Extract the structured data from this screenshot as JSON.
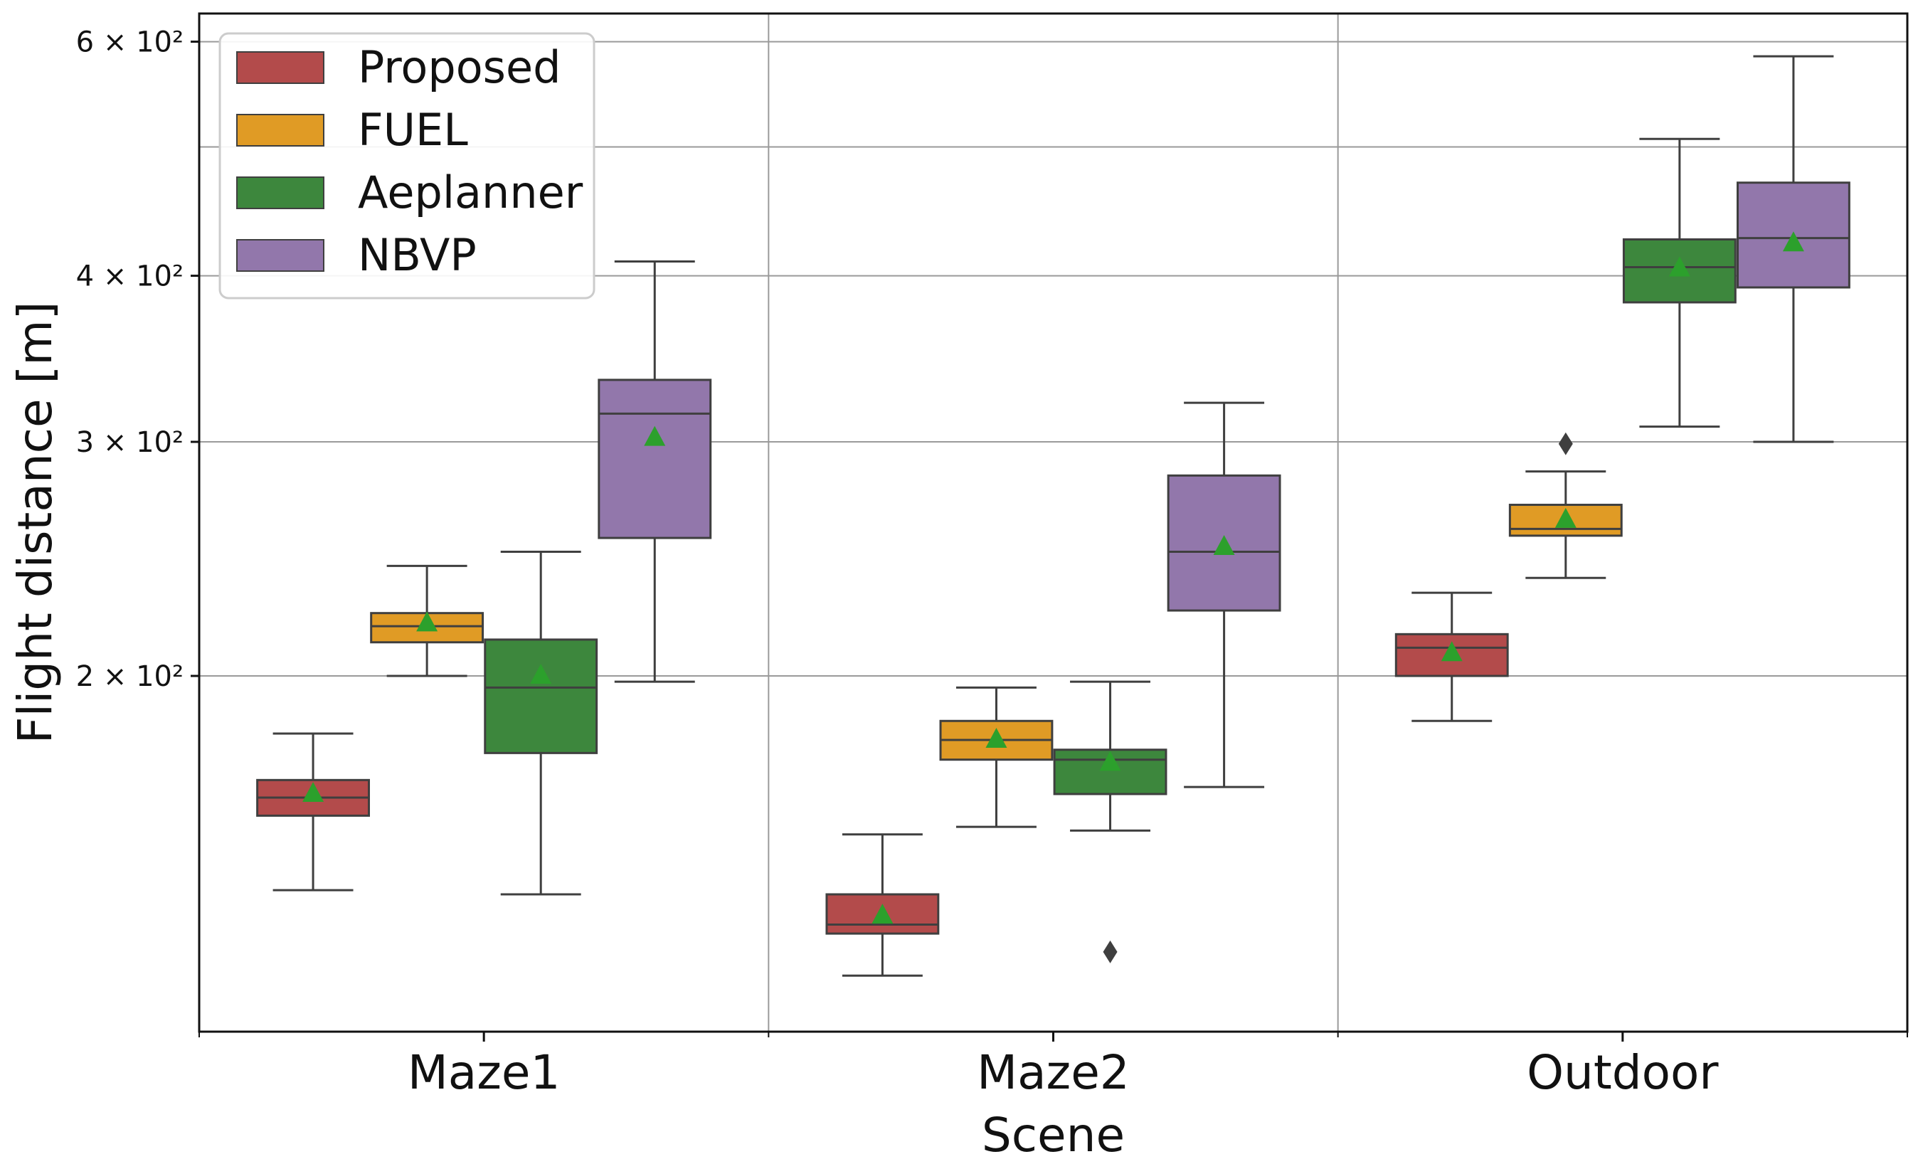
{
  "chart_data": {
    "type": "boxplot",
    "title": "",
    "xlabel": "Scene",
    "ylabel": "Flight distance [m]",
    "yscale": "log",
    "ylim": [
      108,
      630
    ],
    "y_major_ticks": [
      {
        "value": 200,
        "label": "2 × 10²"
      },
      {
        "value": 300,
        "label": "3 × 10²"
      },
      {
        "value": 400,
        "label": "4 × 10²"
      },
      {
        "value": 600,
        "label": "6 × 10²"
      }
    ],
    "y_minor_gridlines": [
      500
    ],
    "categories": [
      "Maze1",
      "Maze2",
      "Outdoor"
    ],
    "grid": true,
    "legend_position": "top-left",
    "series": [
      {
        "name": "Proposed",
        "color": "#b34b4b",
        "boxes": [
          {
            "whisker_low": 138,
            "q1": 157,
            "median": 162,
            "q3": 167,
            "whisker_high": 181,
            "mean": 163,
            "outliers": []
          },
          {
            "whisker_low": 119,
            "q1": 128,
            "median": 130,
            "q3": 137,
            "whisker_high": 152,
            "mean": 132,
            "outliers": []
          },
          {
            "whisker_low": 185,
            "q1": 200,
            "median": 210,
            "q3": 215,
            "whisker_high": 231,
            "mean": 208,
            "outliers": []
          }
        ]
      },
      {
        "name": "FUEL",
        "color": "#e09b25",
        "boxes": [
          {
            "whisker_low": 200,
            "q1": 212,
            "median": 218,
            "q3": 223,
            "whisker_high": 242,
            "mean": 219,
            "outliers": []
          },
          {
            "whisker_low": 154,
            "q1": 173,
            "median": 179,
            "q3": 185,
            "whisker_high": 196,
            "mean": 179,
            "outliers": []
          },
          {
            "whisker_low": 237,
            "q1": 255,
            "median": 258,
            "q3": 269,
            "whisker_high": 285,
            "mean": 262,
            "outliers": [
              299
            ]
          }
        ]
      },
      {
        "name": "Aeplanner",
        "color": "#3d873d",
        "boxes": [
          {
            "whisker_low": 137,
            "q1": 175,
            "median": 196,
            "q3": 213,
            "whisker_high": 248,
            "mean": 200,
            "outliers": []
          },
          {
            "whisker_low": 153,
            "q1": 163,
            "median": 173,
            "q3": 176,
            "whisker_high": 198,
            "mean": 172,
            "outliers": [
              124
            ]
          },
          {
            "whisker_low": 308,
            "q1": 382,
            "median": 406,
            "q3": 426,
            "whisker_high": 507,
            "mean": 405,
            "outliers": []
          }
        ]
      },
      {
        "name": "NBVP",
        "color": "#9277ab",
        "boxes": [
          {
            "whisker_low": 198,
            "q1": 254,
            "median": 315,
            "q3": 334,
            "whisker_high": 410,
            "mean": 302,
            "outliers": []
          },
          {
            "whisker_low": 165,
            "q1": 224,
            "median": 248,
            "q3": 283,
            "whisker_high": 321,
            "mean": 250,
            "outliers": []
          },
          {
            "whisker_low": 300,
            "q1": 392,
            "median": 427,
            "q3": 470,
            "whisker_high": 585,
            "mean": 423,
            "outliers": []
          }
        ]
      }
    ]
  }
}
